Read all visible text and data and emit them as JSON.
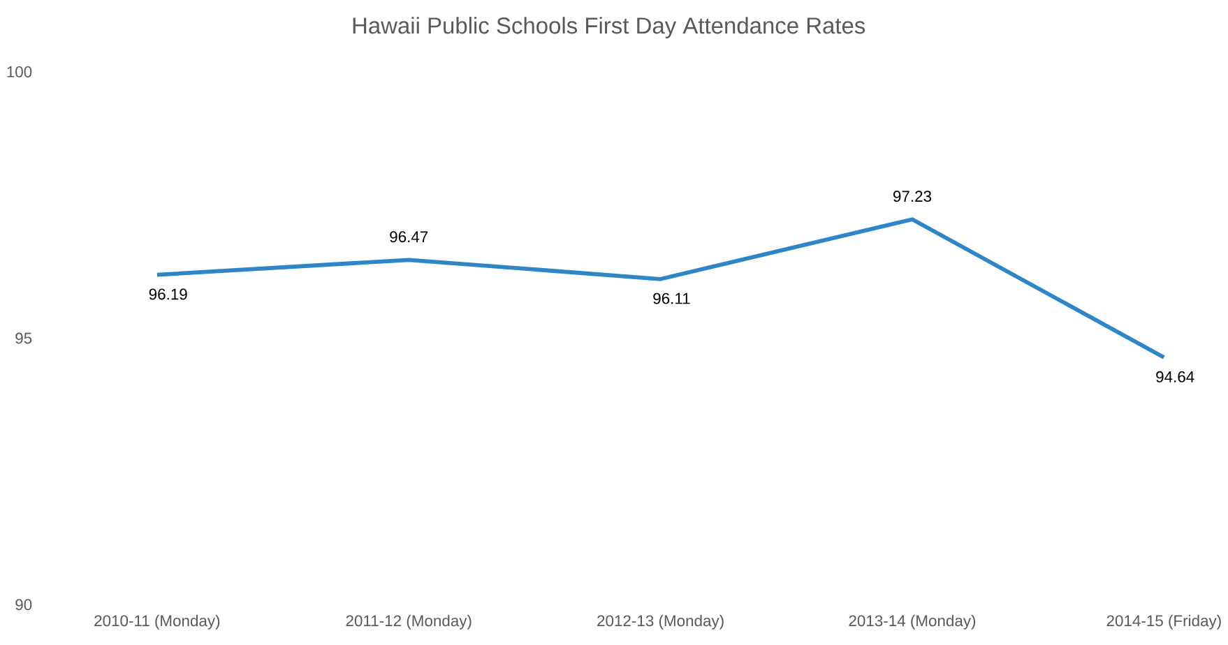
{
  "chart_data": {
    "type": "line",
    "title": "Hawaii Public Schools First Day Attendance Rates",
    "categories": [
      "2010-11 (Monday)",
      "2011-12 (Monday)",
      "2012-13 (Monday)",
      "2013-14 (Monday)",
      "2014-15 (Friday)"
    ],
    "values": [
      96.19,
      96.47,
      96.11,
      97.23,
      94.64
    ],
    "color": "#2e86c8",
    "ylim": [
      90,
      100
    ],
    "yticks": [
      90,
      95,
      100
    ],
    "data_labels": true,
    "marker": "none",
    "line_style": "solid"
  }
}
